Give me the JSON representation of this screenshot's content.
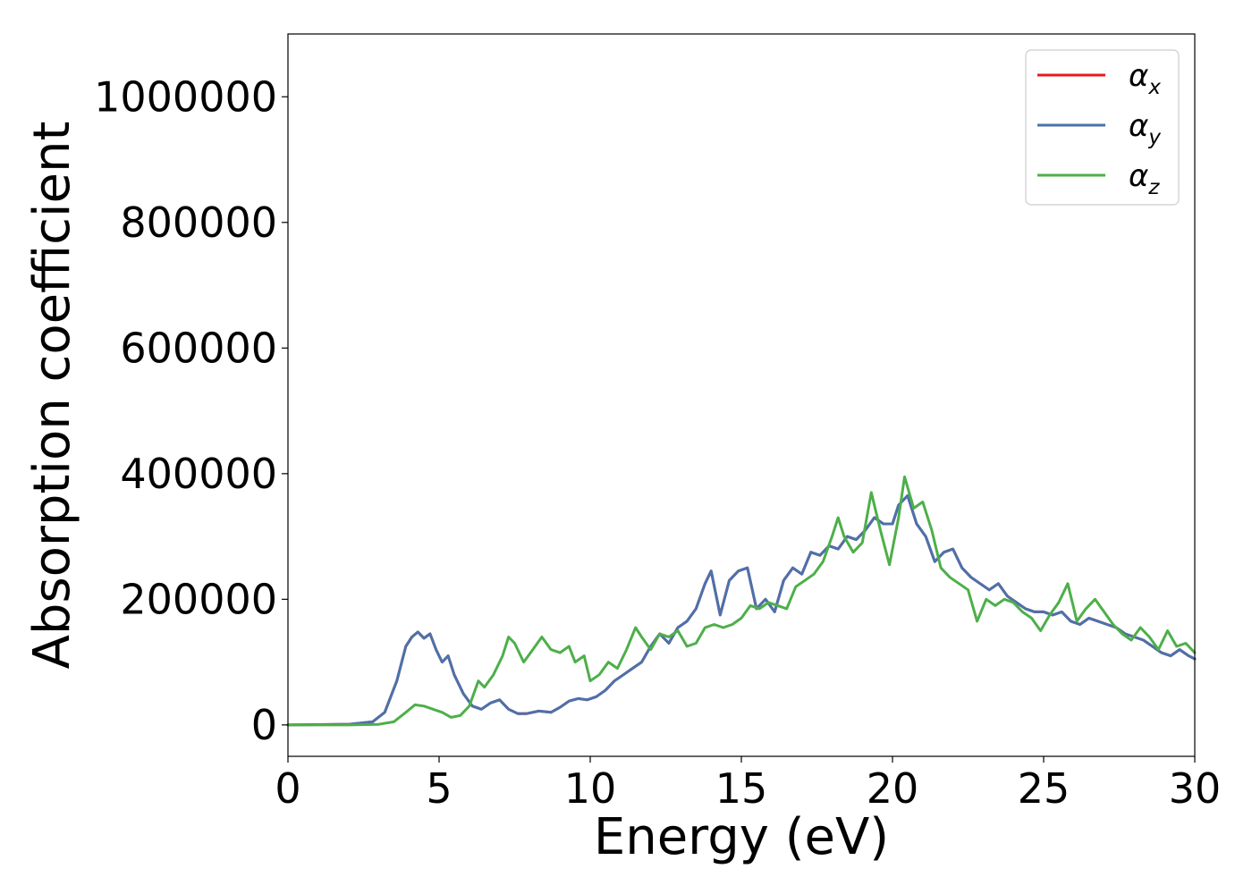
{
  "chart_data": {
    "type": "line",
    "title": "",
    "xlabel": "Energy (eV)",
    "ylabel": "Absorption coefficient",
    "xlim": [
      0,
      30
    ],
    "ylim": [
      -50000,
      1100000
    ],
    "xticks": [
      0,
      5,
      10,
      15,
      20,
      25,
      30
    ],
    "xtick_labels": [
      "0",
      "5",
      "10",
      "15",
      "20",
      "25",
      "30"
    ],
    "yticks": [
      0,
      200000,
      400000,
      600000,
      800000,
      1000000
    ],
    "ytick_labels": [
      "0",
      "200000",
      "400000",
      "600000",
      "800000",
      "1000000"
    ],
    "grid": false,
    "legend_placement": "top-right",
    "colors": {
      "alpha_x": "#e41a1c",
      "alpha_y": "#4a72ac",
      "alpha_z": "#4daf4a"
    },
    "series": [
      {
        "name": "α_x",
        "legend_symbol": "α",
        "legend_subscript": "x",
        "color": "#e41a1c",
        "x": [
          0,
          2,
          2.8,
          3.2,
          3.6,
          3.9,
          4.1,
          4.3,
          4.5,
          4.7,
          4.9,
          5.1,
          5.3,
          5.5,
          5.8,
          6.1,
          6.4,
          6.7,
          7.0,
          7.3,
          7.6,
          7.9,
          8.3,
          8.7,
          9.0,
          9.3,
          9.6,
          9.9,
          10.2,
          10.5,
          10.8,
          11.1,
          11.4,
          11.7,
          12.0,
          12.3,
          12.6,
          12.9,
          13.2,
          13.5,
          13.8,
          14.0,
          14.3,
          14.6,
          14.9,
          15.2,
          15.5,
          15.8,
          16.1,
          16.4,
          16.7,
          17.0,
          17.3,
          17.6,
          17.9,
          18.2,
          18.5,
          18.8,
          19.1,
          19.4,
          19.7,
          20.0,
          20.2,
          20.5,
          20.8,
          21.1,
          21.4,
          21.7,
          22.0,
          22.3,
          22.6,
          22.9,
          23.2,
          23.5,
          23.8,
          24.1,
          24.4,
          24.7,
          25.0,
          25.3,
          25.6,
          25.9,
          26.2,
          26.5,
          26.8,
          27.1,
          27.4,
          27.7,
          28.0,
          28.3,
          28.6,
          28.9,
          29.2,
          29.5,
          29.8,
          30.0
        ],
        "y": [
          0,
          1000,
          5000,
          20000,
          70000,
          125000,
          140000,
          148000,
          138000,
          145000,
          120000,
          100000,
          110000,
          80000,
          50000,
          30000,
          25000,
          35000,
          40000,
          25000,
          18000,
          18000,
          22000,
          20000,
          28000,
          38000,
          42000,
          40000,
          45000,
          55000,
          70000,
          80000,
          90000,
          100000,
          125000,
          145000,
          130000,
          155000,
          165000,
          185000,
          225000,
          245000,
          175000,
          230000,
          245000,
          250000,
          185000,
          200000,
          180000,
          230000,
          250000,
          240000,
          275000,
          270000,
          285000,
          280000,
          300000,
          295000,
          310000,
          330000,
          320000,
          320000,
          350000,
          365000,
          320000,
          300000,
          260000,
          275000,
          280000,
          250000,
          235000,
          225000,
          215000,
          225000,
          205000,
          195000,
          185000,
          180000,
          180000,
          175000,
          180000,
          165000,
          160000,
          170000,
          165000,
          160000,
          155000,
          145000,
          140000,
          135000,
          125000,
          115000,
          110000,
          120000,
          110000,
          105000
        ]
      },
      {
        "name": "α_y",
        "legend_symbol": "α",
        "legend_subscript": "y",
        "color": "#4a72ac",
        "x": [
          0,
          2,
          2.8,
          3.2,
          3.6,
          3.9,
          4.1,
          4.3,
          4.5,
          4.7,
          4.9,
          5.1,
          5.3,
          5.5,
          5.8,
          6.1,
          6.4,
          6.7,
          7.0,
          7.3,
          7.6,
          7.9,
          8.3,
          8.7,
          9.0,
          9.3,
          9.6,
          9.9,
          10.2,
          10.5,
          10.8,
          11.1,
          11.4,
          11.7,
          12.0,
          12.3,
          12.6,
          12.9,
          13.2,
          13.5,
          13.8,
          14.0,
          14.3,
          14.6,
          14.9,
          15.2,
          15.5,
          15.8,
          16.1,
          16.4,
          16.7,
          17.0,
          17.3,
          17.6,
          17.9,
          18.2,
          18.5,
          18.8,
          19.1,
          19.4,
          19.7,
          20.0,
          20.2,
          20.5,
          20.8,
          21.1,
          21.4,
          21.7,
          22.0,
          22.3,
          22.6,
          22.9,
          23.2,
          23.5,
          23.8,
          24.1,
          24.4,
          24.7,
          25.0,
          25.3,
          25.6,
          25.9,
          26.2,
          26.5,
          26.8,
          27.1,
          27.4,
          27.7,
          28.0,
          28.3,
          28.6,
          28.9,
          29.2,
          29.5,
          29.8,
          30.0
        ],
        "y": [
          0,
          1000,
          5000,
          20000,
          70000,
          125000,
          140000,
          148000,
          138000,
          145000,
          120000,
          100000,
          110000,
          80000,
          50000,
          30000,
          25000,
          35000,
          40000,
          25000,
          18000,
          18000,
          22000,
          20000,
          28000,
          38000,
          42000,
          40000,
          45000,
          55000,
          70000,
          80000,
          90000,
          100000,
          125000,
          145000,
          130000,
          155000,
          165000,
          185000,
          225000,
          245000,
          175000,
          230000,
          245000,
          250000,
          185000,
          200000,
          180000,
          230000,
          250000,
          240000,
          275000,
          270000,
          285000,
          280000,
          300000,
          295000,
          310000,
          330000,
          320000,
          320000,
          350000,
          365000,
          320000,
          300000,
          260000,
          275000,
          280000,
          250000,
          235000,
          225000,
          215000,
          225000,
          205000,
          195000,
          185000,
          180000,
          180000,
          175000,
          180000,
          165000,
          160000,
          170000,
          165000,
          160000,
          155000,
          145000,
          140000,
          135000,
          125000,
          115000,
          110000,
          120000,
          110000,
          105000
        ]
      },
      {
        "name": "α_z",
        "legend_symbol": "α",
        "legend_subscript": "z",
        "color": "#4daf4a",
        "x": [
          0,
          2,
          3,
          3.5,
          3.9,
          4.2,
          4.5,
          4.8,
          5.1,
          5.4,
          5.7,
          6.0,
          6.3,
          6.5,
          6.8,
          7.1,
          7.3,
          7.5,
          7.8,
          8.1,
          8.4,
          8.7,
          9.0,
          9.3,
          9.5,
          9.8,
          10.0,
          10.3,
          10.6,
          10.9,
          11.2,
          11.5,
          11.7,
          12.0,
          12.3,
          12.6,
          12.9,
          13.2,
          13.5,
          13.8,
          14.1,
          14.4,
          14.7,
          15.0,
          15.3,
          15.6,
          15.9,
          16.2,
          16.5,
          16.8,
          17.1,
          17.4,
          17.7,
          18.0,
          18.2,
          18.4,
          18.7,
          19.0,
          19.3,
          19.6,
          19.9,
          20.2,
          20.4,
          20.7,
          21.0,
          21.3,
          21.6,
          21.9,
          22.2,
          22.5,
          22.8,
          23.1,
          23.4,
          23.7,
          24.0,
          24.3,
          24.6,
          24.9,
          25.2,
          25.5,
          25.8,
          26.1,
          26.4,
          26.7,
          27.0,
          27.3,
          27.6,
          27.9,
          28.2,
          28.5,
          28.8,
          29.1,
          29.4,
          29.7,
          30.0
        ],
        "y": [
          0,
          0,
          1000,
          5000,
          20000,
          32000,
          30000,
          25000,
          20000,
          12000,
          15000,
          30000,
          70000,
          60000,
          80000,
          110000,
          140000,
          130000,
          100000,
          120000,
          140000,
          120000,
          115000,
          125000,
          100000,
          110000,
          70000,
          80000,
          100000,
          90000,
          120000,
          155000,
          140000,
          120000,
          145000,
          140000,
          150000,
          125000,
          130000,
          155000,
          160000,
          155000,
          160000,
          170000,
          190000,
          185000,
          195000,
          190000,
          185000,
          220000,
          230000,
          240000,
          260000,
          300000,
          330000,
          300000,
          275000,
          290000,
          370000,
          310000,
          255000,
          330000,
          395000,
          345000,
          355000,
          310000,
          250000,
          235000,
          225000,
          215000,
          165000,
          200000,
          190000,
          200000,
          195000,
          180000,
          170000,
          150000,
          175000,
          195000,
          225000,
          165000,
          185000,
          200000,
          180000,
          160000,
          145000,
          135000,
          155000,
          140000,
          120000,
          150000,
          125000,
          130000,
          115000
        ]
      }
    ]
  }
}
